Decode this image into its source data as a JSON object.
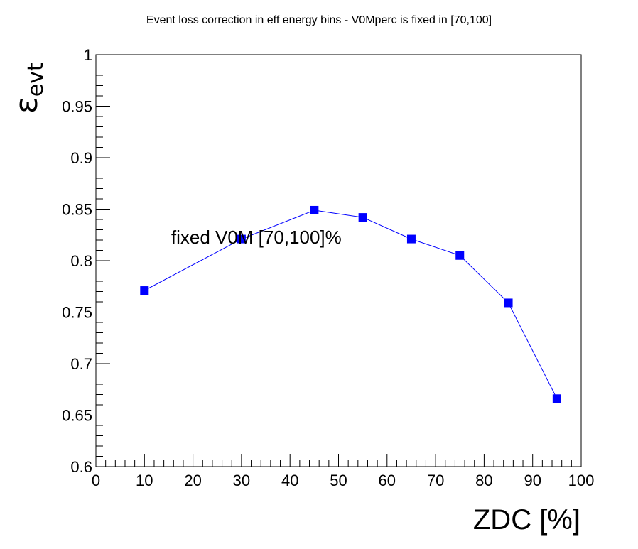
{
  "chart_data": {
    "type": "line",
    "title": "Event loss correction in eff energy bins - V0Mperc is fixed in [70,100]",
    "xlabel": "ZDC [%]",
    "ylabel": {
      "symbol": "ε",
      "subscript": "evt"
    },
    "xlim": [
      0,
      100
    ],
    "ylim": [
      0.6,
      1.0
    ],
    "x_ticks": [
      "0",
      "10",
      "20",
      "30",
      "40",
      "50",
      "60",
      "70",
      "80",
      "90",
      "100"
    ],
    "y_ticks": [
      "0.6",
      "0.65",
      "0.7",
      "0.75",
      "0.8",
      "0.85",
      "0.9",
      "0.95",
      "1"
    ],
    "grid": false,
    "series": [
      {
        "x": [
          10,
          30,
          45,
          55,
          65,
          75,
          85,
          95
        ],
        "y": [
          0.771,
          0.821,
          0.849,
          0.842,
          0.821,
          0.805,
          0.759,
          0.666
        ],
        "marker": "square",
        "color": "#0000ff"
      }
    ],
    "annotations": [
      {
        "text": "fixed V0M [70,100]%",
        "x": 15.5,
        "y": 0.8165
      }
    ]
  }
}
